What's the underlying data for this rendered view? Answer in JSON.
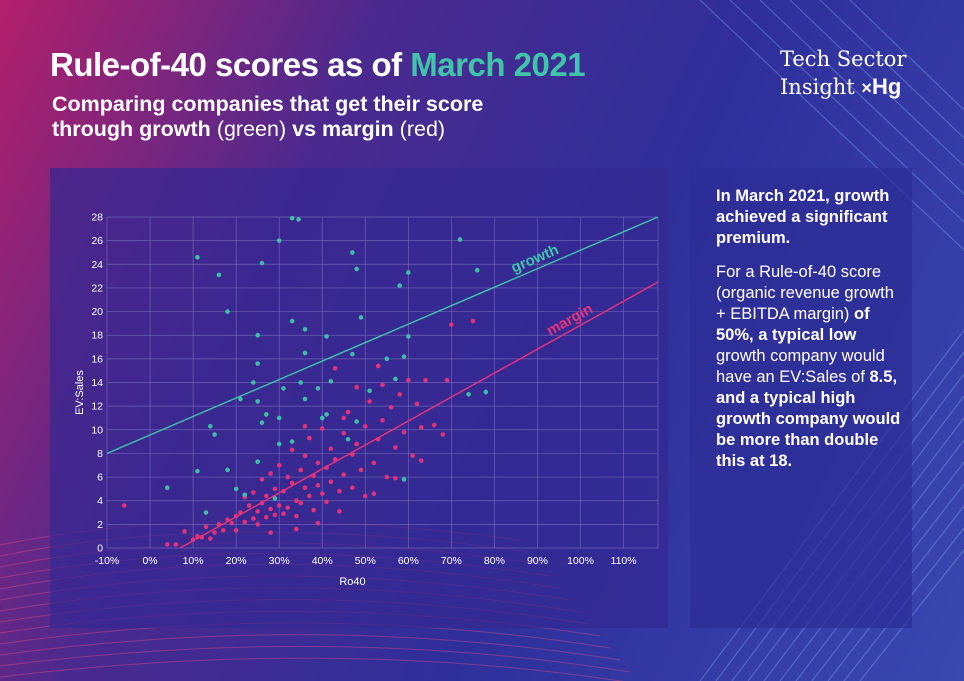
{
  "header": {
    "title_prefix": "Rule-of-40 scores as of",
    "title_accent": "March 2021",
    "subtitle_line1": "Comparing companies that get their score",
    "subtitle_bold_a": "through growth",
    "subtitle_light_a": "(green)",
    "subtitle_bold_b": "vs margin",
    "subtitle_light_b": "(red)"
  },
  "brand": {
    "line1": "Tech  Sector",
    "line2": "Insight",
    "mark": "×",
    "logo": "Hg"
  },
  "side": {
    "p1": "In March 2021, growth achieved a significant premium.",
    "p2_a": "For a Rule-of-40 score (organic revenue growth + EBITDA margin) ",
    "p2_b": "of 50%, a typical low",
    "p2_c": " growth company would have an EV:Sales of ",
    "p2_d": "8.5",
    "p2_e": ", and a ",
    "p2_f": "typical high growth company would be more than double this at 18",
    "p2_g": "."
  },
  "colors": {
    "growth": "#40c4aa",
    "margin": "#e8337a",
    "grid": "#7a6fbf"
  },
  "chart_data": {
    "type": "scatter",
    "title": "",
    "xlabel": "Ro40",
    "ylabel": "EV:Sales",
    "xlim": [
      -0.1,
      1.18
    ],
    "ylim": [
      0,
      28
    ],
    "x_ticks": [
      -0.1,
      0,
      0.1,
      0.2,
      0.3,
      0.4,
      0.5,
      0.6,
      0.7,
      0.8,
      0.9,
      1.0,
      1.1
    ],
    "x_tick_labels": [
      "-10%",
      "0%",
      "10%",
      "20%",
      "30%",
      "40%",
      "50%",
      "60%",
      "70%",
      "80%",
      "90%",
      "100%",
      "110%"
    ],
    "y_ticks": [
      0,
      2,
      4,
      6,
      8,
      10,
      12,
      14,
      16,
      18,
      20,
      22,
      24,
      26,
      28
    ],
    "y_tick_labels": [
      "0",
      "2",
      "4",
      "6",
      "8",
      "10",
      "12",
      "14",
      "16",
      "18",
      "20",
      "22",
      "24",
      "26",
      "28"
    ],
    "grid": true,
    "trendlines": [
      {
        "name": "growth",
        "label": "growth",
        "x": [
          -0.1,
          1.18
        ],
        "y": [
          8.0,
          28.0
        ]
      },
      {
        "name": "margin",
        "label": "margin",
        "x": [
          0.07,
          1.18
        ],
        "y": [
          0,
          22.5
        ]
      }
    ],
    "series": [
      {
        "name": "growth",
        "points": [
          [
            0.11,
            24.6
          ],
          [
            0.16,
            23.1
          ],
          [
            0.18,
            20.0
          ],
          [
            0.26,
            24.1
          ],
          [
            0.3,
            26.0
          ],
          [
            0.33,
            27.9
          ],
          [
            0.345,
            27.8
          ],
          [
            0.47,
            25.0
          ],
          [
            0.48,
            23.6
          ],
          [
            0.58,
            22.2
          ],
          [
            0.6,
            23.3
          ],
          [
            0.72,
            26.1
          ],
          [
            0.76,
            23.5
          ],
          [
            0.49,
            19.5
          ],
          [
            0.33,
            19.2
          ],
          [
            0.36,
            18.5
          ],
          [
            0.41,
            17.9
          ],
          [
            0.6,
            17.9
          ],
          [
            0.25,
            18.0
          ],
          [
            0.25,
            15.6
          ],
          [
            0.36,
            16.5
          ],
          [
            0.47,
            16.4
          ],
          [
            0.55,
            16.0
          ],
          [
            0.59,
            16.2
          ],
          [
            0.21,
            12.6
          ],
          [
            0.24,
            14.0
          ],
          [
            0.31,
            13.5
          ],
          [
            0.35,
            14.0
          ],
          [
            0.39,
            13.5
          ],
          [
            0.42,
            14.1
          ],
          [
            0.51,
            13.3
          ],
          [
            0.57,
            14.3
          ],
          [
            0.36,
            12.6
          ],
          [
            0.27,
            11.3
          ],
          [
            0.26,
            10.6
          ],
          [
            0.41,
            11.3
          ],
          [
            0.4,
            11.0
          ],
          [
            0.48,
            10.7
          ],
          [
            0.14,
            10.3
          ],
          [
            0.15,
            9.6
          ],
          [
            0.3,
            8.8
          ],
          [
            0.33,
            9.0
          ],
          [
            0.46,
            9.2
          ],
          [
            0.11,
            6.5
          ],
          [
            0.18,
            6.6
          ],
          [
            0.25,
            7.3
          ],
          [
            0.2,
            5.0
          ],
          [
            0.22,
            4.5
          ],
          [
            0.04,
            5.1
          ],
          [
            0.13,
            3.0
          ],
          [
            0.59,
            5.8
          ],
          [
            0.74,
            13.0
          ],
          [
            0.78,
            13.2
          ],
          [
            0.29,
            4.2
          ],
          [
            0.25,
            12.4
          ],
          [
            0.3,
            11.0
          ]
        ]
      },
      {
        "name": "margin",
        "points": [
          [
            -0.06,
            3.6
          ],
          [
            0.04,
            0.3
          ],
          [
            0.06,
            0.3
          ],
          [
            0.08,
            1.4
          ],
          [
            0.1,
            0.7
          ],
          [
            0.11,
            1.0
          ],
          [
            0.12,
            0.9
          ],
          [
            0.13,
            1.8
          ],
          [
            0.14,
            0.8
          ],
          [
            0.15,
            1.3
          ],
          [
            0.16,
            2.0
          ],
          [
            0.17,
            1.5
          ],
          [
            0.18,
            2.4
          ],
          [
            0.19,
            2.1
          ],
          [
            0.2,
            2.7
          ],
          [
            0.2,
            1.5
          ],
          [
            0.21,
            3.0
          ],
          [
            0.22,
            2.2
          ],
          [
            0.22,
            4.3
          ],
          [
            0.23,
            3.6
          ],
          [
            0.24,
            2.5
          ],
          [
            0.24,
            4.7
          ],
          [
            0.25,
            3.1
          ],
          [
            0.25,
            2.0
          ],
          [
            0.26,
            3.8
          ],
          [
            0.26,
            5.8
          ],
          [
            0.27,
            2.6
          ],
          [
            0.27,
            4.4
          ],
          [
            0.28,
            3.3
          ],
          [
            0.28,
            6.3
          ],
          [
            0.29,
            2.8
          ],
          [
            0.29,
            5.0
          ],
          [
            0.3,
            3.6
          ],
          [
            0.3,
            7.0
          ],
          [
            0.31,
            2.9
          ],
          [
            0.31,
            4.8
          ],
          [
            0.32,
            6.0
          ],
          [
            0.32,
            3.4
          ],
          [
            0.33,
            5.5
          ],
          [
            0.33,
            8.3
          ],
          [
            0.34,
            4.0
          ],
          [
            0.34,
            2.7
          ],
          [
            0.35,
            6.6
          ],
          [
            0.35,
            3.8
          ],
          [
            0.36,
            5.1
          ],
          [
            0.36,
            7.8
          ],
          [
            0.37,
            4.4
          ],
          [
            0.37,
            9.3
          ],
          [
            0.38,
            6.1
          ],
          [
            0.38,
            3.2
          ],
          [
            0.39,
            5.3
          ],
          [
            0.39,
            7.2
          ],
          [
            0.4,
            4.6
          ],
          [
            0.4,
            10.1
          ],
          [
            0.41,
            6.8
          ],
          [
            0.41,
            3.9
          ],
          [
            0.42,
            8.4
          ],
          [
            0.42,
            5.6
          ],
          [
            0.43,
            15.2
          ],
          [
            0.43,
            7.5
          ],
          [
            0.44,
            4.8
          ],
          [
            0.45,
            9.7
          ],
          [
            0.45,
            6.2
          ],
          [
            0.46,
            11.5
          ],
          [
            0.47,
            7.9
          ],
          [
            0.47,
            5.1
          ],
          [
            0.48,
            13.6
          ],
          [
            0.48,
            8.8
          ],
          [
            0.49,
            6.6
          ],
          [
            0.5,
            10.3
          ],
          [
            0.5,
            4.4
          ],
          [
            0.51,
            12.4
          ],
          [
            0.52,
            7.2
          ],
          [
            0.53,
            15.4
          ],
          [
            0.53,
            9.2
          ],
          [
            0.54,
            10.8
          ],
          [
            0.55,
            6.0
          ],
          [
            0.56,
            11.9
          ],
          [
            0.57,
            8.5
          ],
          [
            0.58,
            13.0
          ],
          [
            0.59,
            9.8
          ],
          [
            0.6,
            14.2
          ],
          [
            0.61,
            7.8
          ],
          [
            0.62,
            12.2
          ],
          [
            0.63,
            10.2
          ],
          [
            0.64,
            14.2
          ],
          [
            0.66,
            10.4
          ],
          [
            0.68,
            9.6
          ],
          [
            0.69,
            14.2
          ],
          [
            0.7,
            18.9
          ],
          [
            0.75,
            19.2
          ],
          [
            0.57,
            5.9
          ],
          [
            0.52,
            4.6
          ],
          [
            0.44,
            3.1
          ],
          [
            0.39,
            2.1
          ],
          [
            0.34,
            1.6
          ],
          [
            0.28,
            1.3
          ],
          [
            0.63,
            7.4
          ],
          [
            0.54,
            13.8
          ],
          [
            0.45,
            11.0
          ],
          [
            0.36,
            10.3
          ]
        ]
      }
    ]
  }
}
